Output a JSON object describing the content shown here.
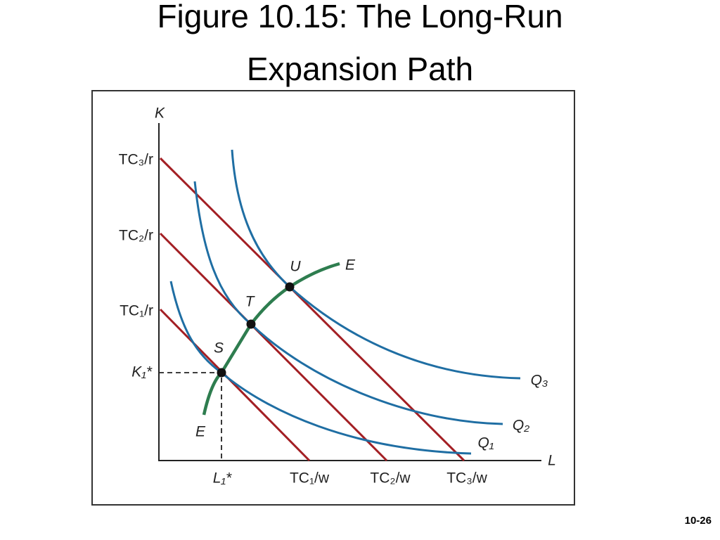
{
  "title": "Figure 10.15: The Long-Run Expansion Path",
  "slide_number": "10-26",
  "figure": {
    "y_axis_label": "K",
    "x_axis_label": "L",
    "y_labels": [
      "TC₃/r",
      "TC₂/r",
      "TC₁/r",
      "K₁*"
    ],
    "x_labels": [
      "L₁*",
      "TC₁/w",
      "TC₂/w",
      "TC₃/w"
    ],
    "point_labels": [
      "U",
      "T",
      "S"
    ],
    "path_labels": [
      "E",
      "E"
    ],
    "curve_labels": [
      "Q₃",
      "Q₂",
      "Q₁"
    ]
  }
}
